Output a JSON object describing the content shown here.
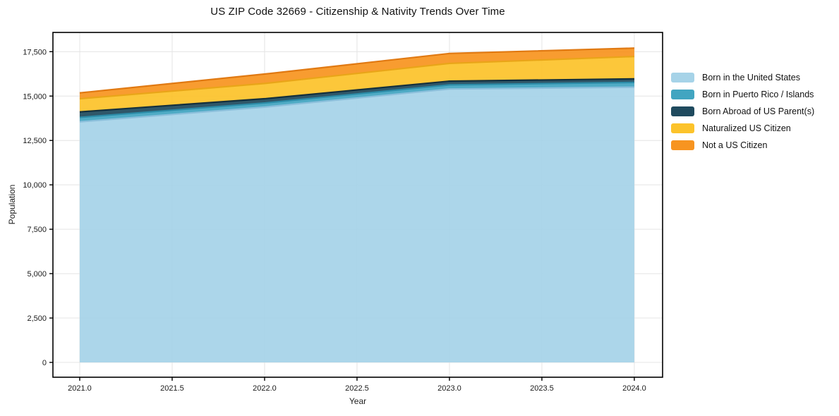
{
  "chart_data": {
    "type": "area",
    "stacked": true,
    "title": "US ZIP Code 32669 - Citizenship & Nativity Trends Over Time",
    "xlabel": "Year",
    "ylabel": "Population",
    "x": [
      2021,
      2022,
      2023,
      2024
    ],
    "series": [
      {
        "name": "Born in the United States",
        "values": [
          13550,
          14380,
          15400,
          15500
        ],
        "color": "#A6D3E8",
        "edge": "#8BBFDB"
      },
      {
        "name": "Born in Puerto Rico / Islands",
        "values": [
          250,
          230,
          230,
          270
        ],
        "color": "#42A5C1",
        "edge": "#2C8CA8"
      },
      {
        "name": "Born Abroad of US Parent(s)",
        "values": [
          310,
          240,
          210,
          200
        ],
        "color": "#1F4A5E",
        "edge": "#132F3D"
      },
      {
        "name": "Naturalized US Citizen",
        "values": [
          740,
          860,
          1000,
          1260
        ],
        "color": "#FCC32B",
        "edge": "#E9A518"
      },
      {
        "name": "Not a US Citizen",
        "values": [
          330,
          530,
          560,
          470
        ],
        "color": "#F79420",
        "edge": "#E07912"
      }
    ],
    "stack_totals": [
      15180,
      16240,
      17400,
      17700
    ],
    "x_ticks": [
      2021.0,
      2021.5,
      2022.0,
      2022.5,
      2023.0,
      2023.5,
      2024.0
    ],
    "x_tick_labels": [
      "2021.0",
      "2021.5",
      "2022.0",
      "2022.5",
      "2023.0",
      "2023.5",
      "2024.0"
    ],
    "y_ticks": [
      0,
      2500,
      5000,
      7500,
      10000,
      12500,
      15000,
      17500
    ],
    "y_tick_labels": [
      "0",
      "2,500",
      "5,000",
      "7,500",
      "10,000",
      "12,500",
      "15,000",
      "17,500"
    ],
    "xlim": [
      2020.855,
      2024.153
    ],
    "ylim": [
      -834,
      18584
    ],
    "grid": true,
    "grid_color": "#e4e4e4",
    "frame_color": "#000000",
    "background_color": "#ffffff",
    "legend_position": "right"
  }
}
